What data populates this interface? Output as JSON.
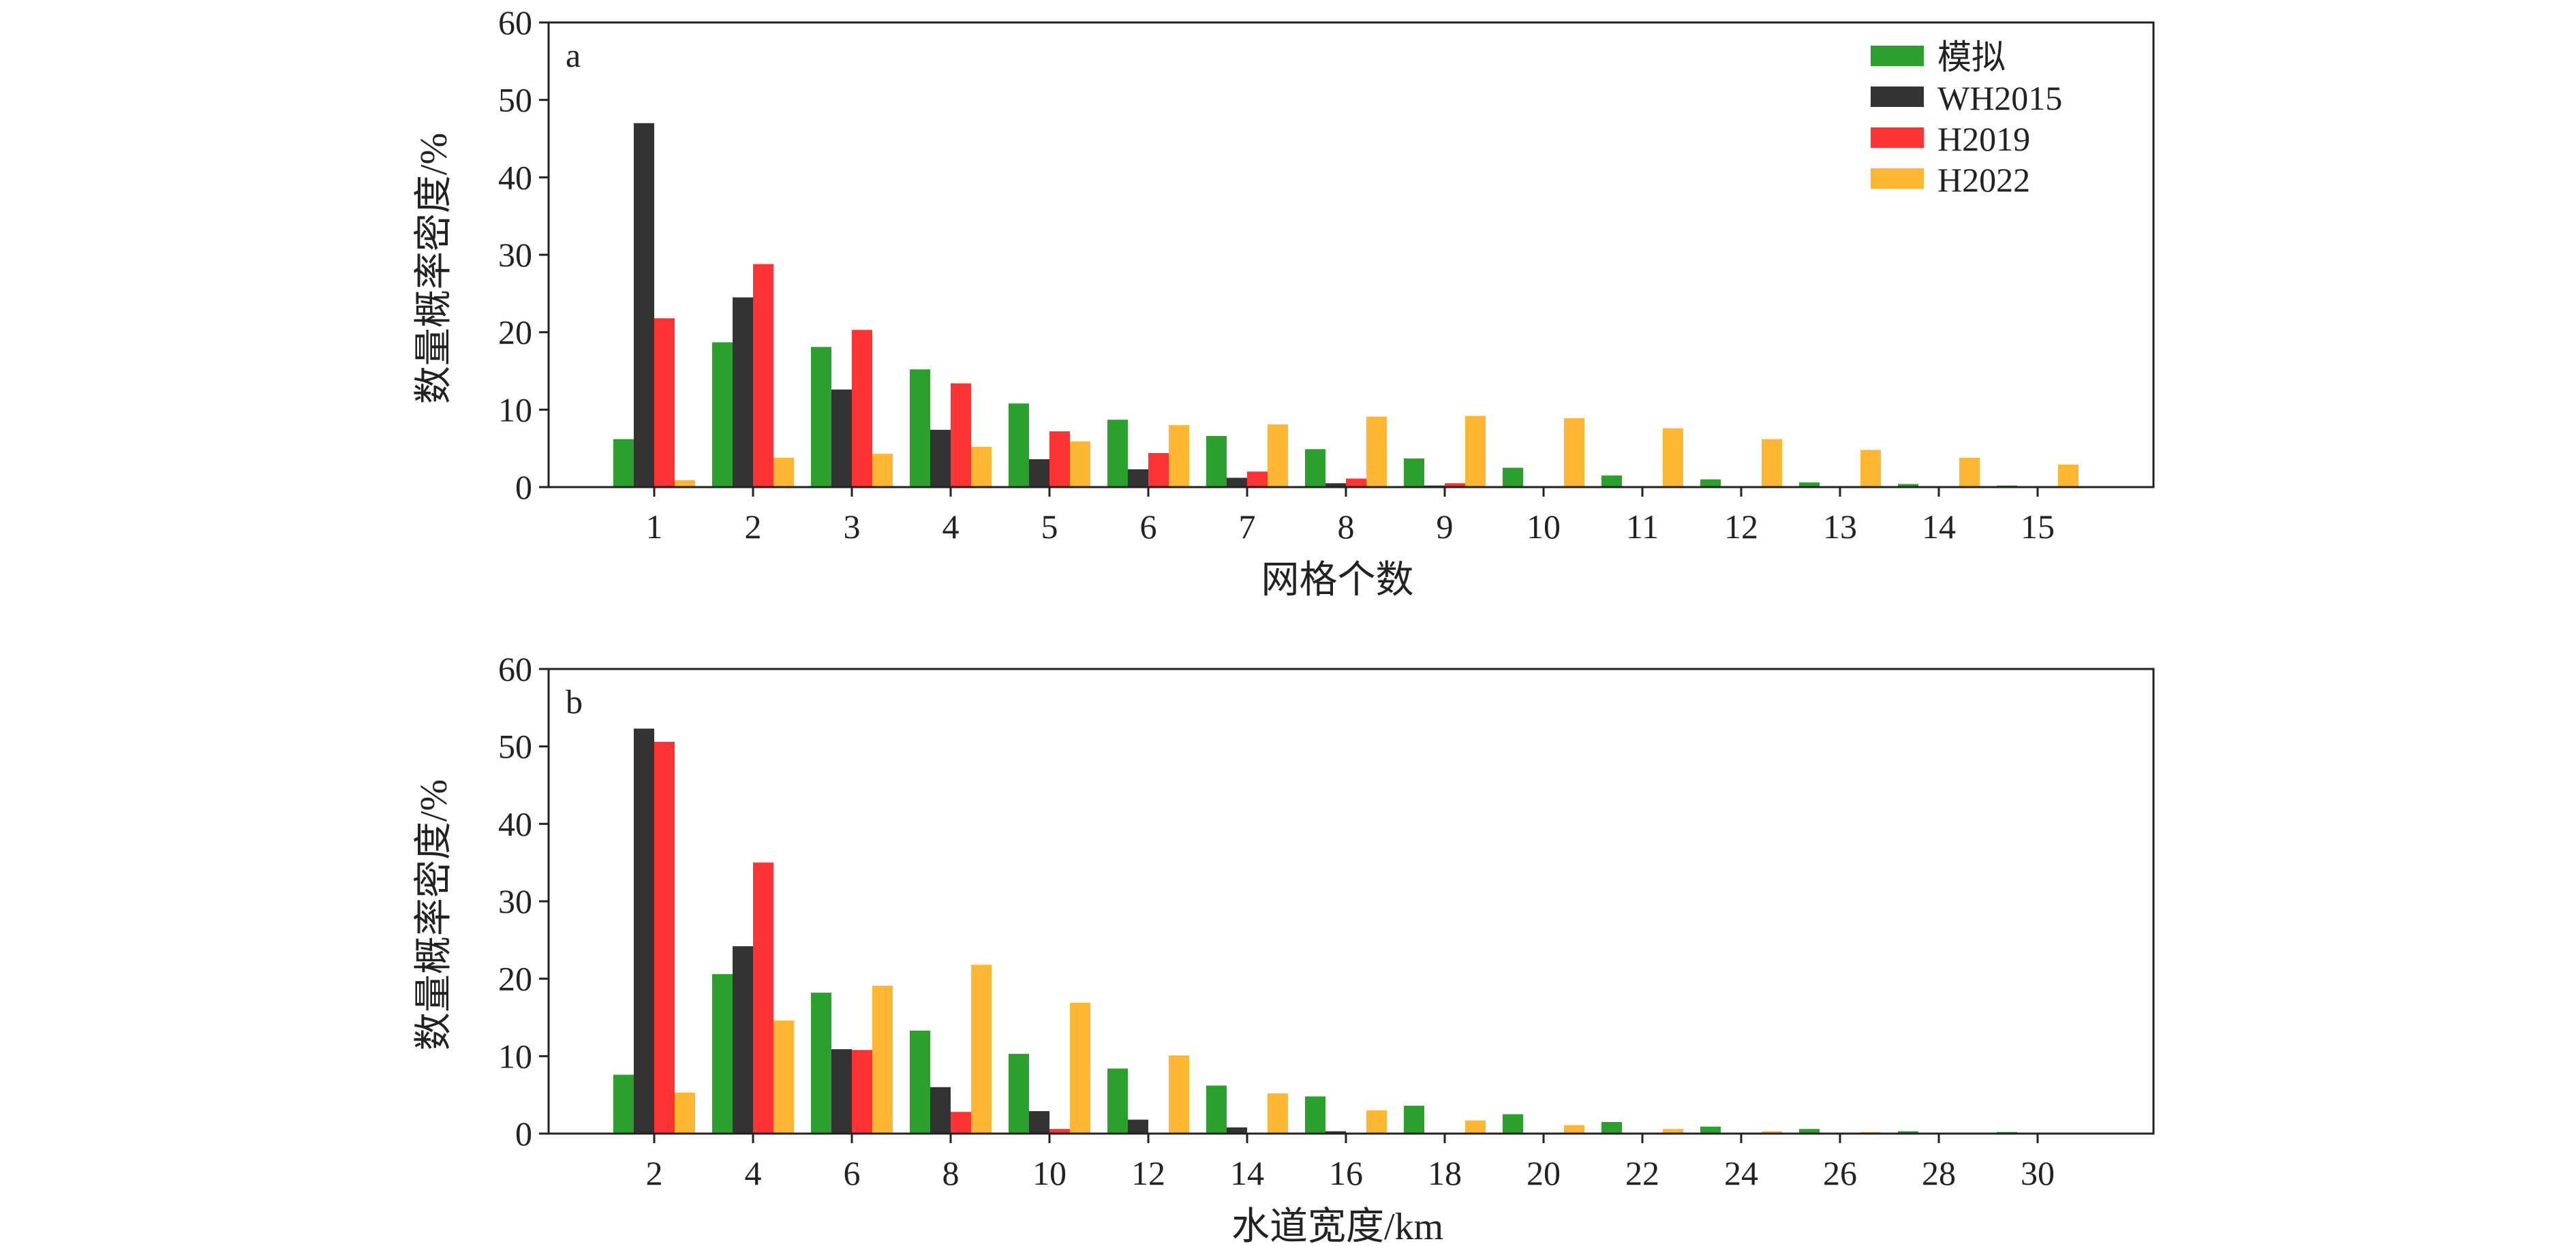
{
  "legend": {
    "entries": [
      {
        "label": "模拟",
        "color": "#2ca02c"
      },
      {
        "label": "WH2015",
        "color": "#333333"
      },
      {
        "label": "H2019",
        "color": "#ff3333"
      },
      {
        "label": "H2022",
        "color": "#ffb733"
      }
    ]
  },
  "chart_data": [
    {
      "type": "bar",
      "panel_label": "a",
      "title": "",
      "xlabel": "网格个数",
      "ylabel": "数量概率密度/%",
      "ylim": [
        0,
        60
      ],
      "yticks": [
        0,
        10,
        20,
        30,
        40,
        50,
        60
      ],
      "categories": [
        "1",
        "2",
        "3",
        "4",
        "5",
        "6",
        "7",
        "8",
        "9",
        "10",
        "11",
        "12",
        "13",
        "14",
        "15"
      ],
      "series": [
        {
          "name": "模拟",
          "color": "#2ca02c",
          "values": [
            6.2,
            18.7,
            18.1,
            15.2,
            10.8,
            8.7,
            6.6,
            4.9,
            3.7,
            2.5,
            1.5,
            1.0,
            0.6,
            0.4,
            0.2
          ]
        },
        {
          "name": "WH2015",
          "color": "#333333",
          "values": [
            47.0,
            24.5,
            12.6,
            7.4,
            3.6,
            2.3,
            1.2,
            0.5,
            0.2,
            0.1,
            0.0,
            0.0,
            0.0,
            0.0,
            0.0
          ]
        },
        {
          "name": "H2019",
          "color": "#ff3333",
          "values": [
            21.8,
            28.8,
            20.3,
            13.4,
            7.2,
            4.4,
            2.0,
            1.1,
            0.5,
            0.0,
            0.0,
            0.0,
            0.0,
            0.0,
            0.0
          ]
        },
        {
          "name": "H2022",
          "color": "#ffb733",
          "values": [
            0.9,
            3.8,
            4.3,
            5.2,
            5.9,
            8.0,
            8.1,
            9.1,
            9.2,
            8.9,
            7.6,
            6.2,
            4.8,
            3.8,
            2.9
          ]
        }
      ]
    },
    {
      "type": "bar",
      "panel_label": "b",
      "title": "",
      "xlabel": "水道宽度/km",
      "ylabel": "数量概率密度/%",
      "ylim": [
        0,
        60
      ],
      "yticks": [
        0,
        10,
        20,
        30,
        40,
        50,
        60
      ],
      "categories": [
        "2",
        "4",
        "6",
        "8",
        "10",
        "12",
        "14",
        "16",
        "18",
        "20",
        "22",
        "24",
        "26",
        "28",
        "30"
      ],
      "series": [
        {
          "name": "模拟",
          "color": "#2ca02c",
          "values": [
            7.6,
            20.6,
            18.2,
            13.3,
            10.3,
            8.4,
            6.2,
            4.8,
            3.6,
            2.5,
            1.5,
            0.9,
            0.6,
            0.3,
            0.2
          ]
        },
        {
          "name": "WH2015",
          "color": "#333333",
          "values": [
            52.3,
            24.2,
            10.9,
            6.0,
            2.9,
            1.8,
            0.8,
            0.3,
            0.1,
            0.0,
            0.0,
            0.0,
            0.0,
            0.0,
            0.0
          ]
        },
        {
          "name": "H2019",
          "color": "#ff3333",
          "values": [
            50.6,
            35.0,
            10.8,
            2.8,
            0.6,
            0.1,
            0.0,
            0.0,
            0.0,
            0.0,
            0.0,
            0.0,
            0.0,
            0.0,
            0.0
          ]
        },
        {
          "name": "H2022",
          "color": "#ffb733",
          "values": [
            5.3,
            14.6,
            19.1,
            21.8,
            16.9,
            10.1,
            5.2,
            3.0,
            1.7,
            1.1,
            0.6,
            0.3,
            0.2,
            0.1,
            0.1
          ]
        }
      ]
    }
  ]
}
